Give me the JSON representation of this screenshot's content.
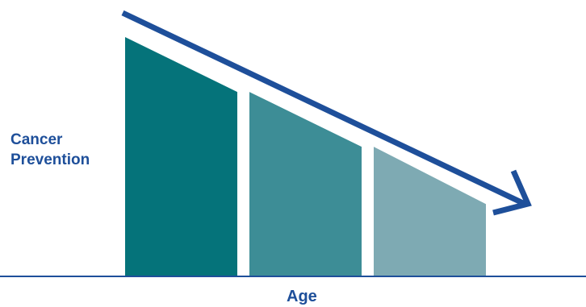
{
  "chart_data": {
    "type": "bar",
    "categories": [
      "",
      "",
      ""
    ],
    "series": [
      {
        "values": [
          100,
          77,
          54
        ],
        "values_right_edge": [
          77,
          54,
          30
        ]
      }
    ],
    "ylim": [
      0,
      100
    ],
    "xlabel": "Age",
    "ylabel_lines": [
      "Cancer",
      "Prevention"
    ],
    "trend_arrow": "decreasing",
    "grid": false,
    "legend": "none"
  },
  "colors": {
    "bars": [
      "#05737a",
      "#3d8d96",
      "#7eaab3"
    ],
    "axis": "#1e4f9a",
    "arrow": "#1e4f9a",
    "text": "#1e4f9a"
  }
}
